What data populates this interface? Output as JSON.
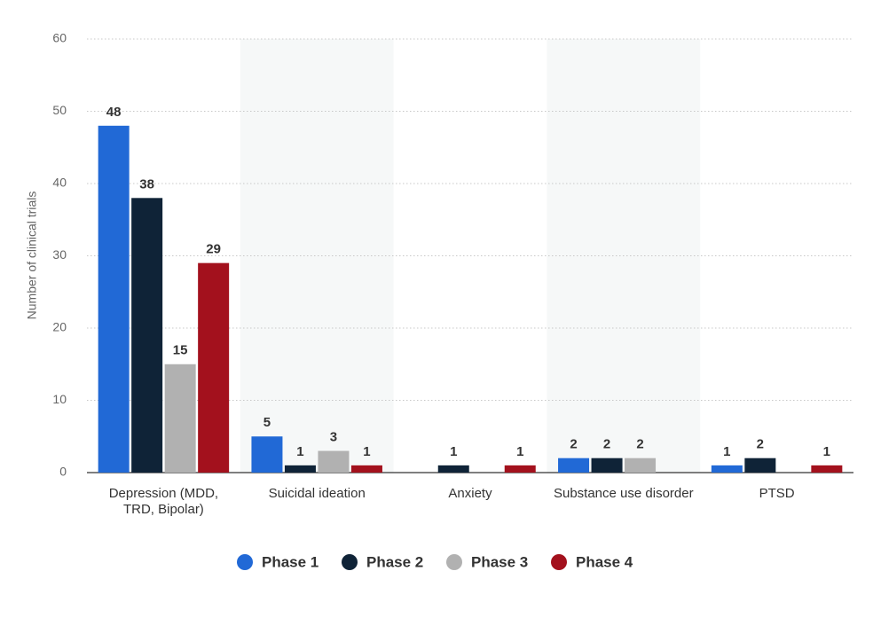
{
  "chart_data": {
    "type": "bar",
    "y_label": "Number of clinical trials",
    "categories": [
      "Depression (MDD, TRD, Bipolar)",
      "Suicidal ideation",
      "Anxiety",
      "Substance use disorder",
      "PTSD"
    ],
    "series": [
      {
        "name": "Phase 1",
        "color": "#2169d6",
        "values": [
          48,
          5,
          null,
          2,
          1
        ]
      },
      {
        "name": "Phase 2",
        "color": "#0f2337",
        "values": [
          38,
          1,
          1,
          2,
          2
        ]
      },
      {
        "name": "Phase 3",
        "color": "#b1b1b1",
        "values": [
          15,
          3,
          null,
          2,
          null
        ]
      },
      {
        "name": "Phase 4",
        "color": "#a3111d",
        "values": [
          29,
          1,
          1,
          null,
          1
        ]
      }
    ],
    "ylim": [
      0,
      60
    ],
    "yticks": [
      0,
      10,
      20,
      30,
      40,
      50,
      60
    ],
    "grid": true,
    "legend": "bottom"
  }
}
